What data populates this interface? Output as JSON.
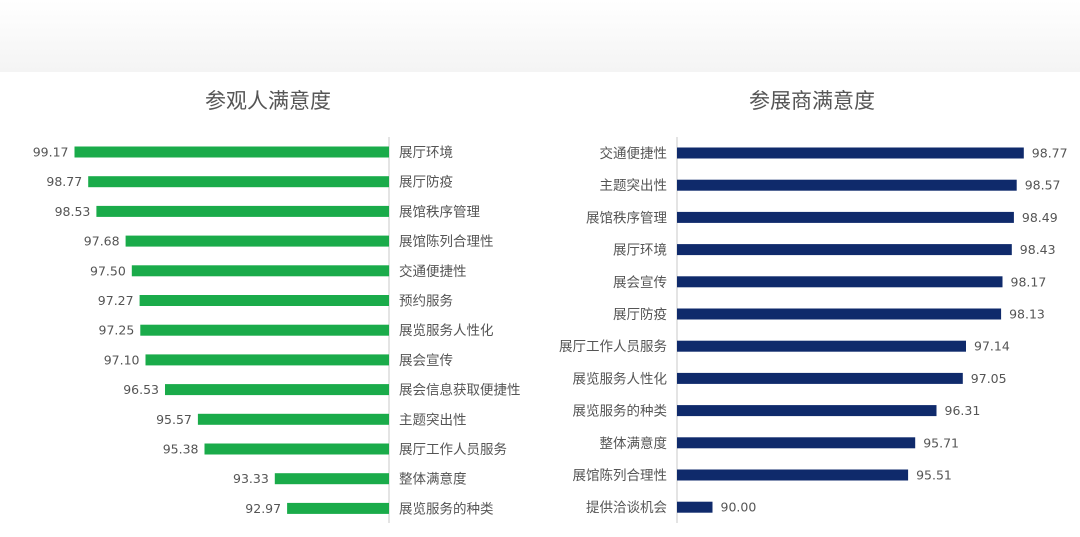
{
  "colors": {
    "left_bar": "#1aab4a",
    "right_bar": "#0f2a6b",
    "axis": "#c8c8c8",
    "text": "#555555"
  },
  "chart_data": [
    {
      "type": "bar",
      "orientation": "horizontal",
      "title": "参观人满意度",
      "xlim": [
        90,
        100
      ],
      "direction": "right-to-left",
      "categories": [
        "展厅环境",
        "展厅防疫",
        "展馆秩序管理",
        "展馆陈列合理性",
        "交通便捷性",
        "预约服务",
        "展览服务人性化",
        "展会宣传",
        "展会信息获取便捷性",
        "主题突出性",
        "展厅工作人员服务",
        "整体满意度",
        "展览服务的种类"
      ],
      "values": [
        99.17,
        98.77,
        98.53,
        97.68,
        97.5,
        97.27,
        97.25,
        97.1,
        96.53,
        95.57,
        95.38,
        93.33,
        92.97
      ],
      "value_labels": [
        "99.17",
        "98.77",
        "98.53",
        "97.68",
        "97.50",
        "97.27",
        "97.25",
        "97.10",
        "96.53",
        "95.57",
        "95.38",
        "93.33",
        "92.97"
      ]
    },
    {
      "type": "bar",
      "orientation": "horizontal",
      "title": "参展商满意度",
      "xlim": [
        89,
        100.5
      ],
      "direction": "left-to-right",
      "categories": [
        "交通便捷性",
        "主题突出性",
        "展馆秩序管理",
        "展厅环境",
        "展会宣传",
        "展厅防疫",
        "展厅工作人员服务",
        "展览服务人性化",
        "展览服务的种类",
        "整体满意度",
        "展馆陈列合理性",
        "提供洽谈机会"
      ],
      "values": [
        98.77,
        98.57,
        98.49,
        98.43,
        98.17,
        98.13,
        97.14,
        97.05,
        96.31,
        95.71,
        95.51,
        90.0
      ],
      "value_labels": [
        "98.77",
        "98.57",
        "98.49",
        "98.43",
        "98.17",
        "98.13",
        "97.14",
        "97.05",
        "96.31",
        "95.71",
        "95.51",
        "90.00"
      ]
    }
  ]
}
